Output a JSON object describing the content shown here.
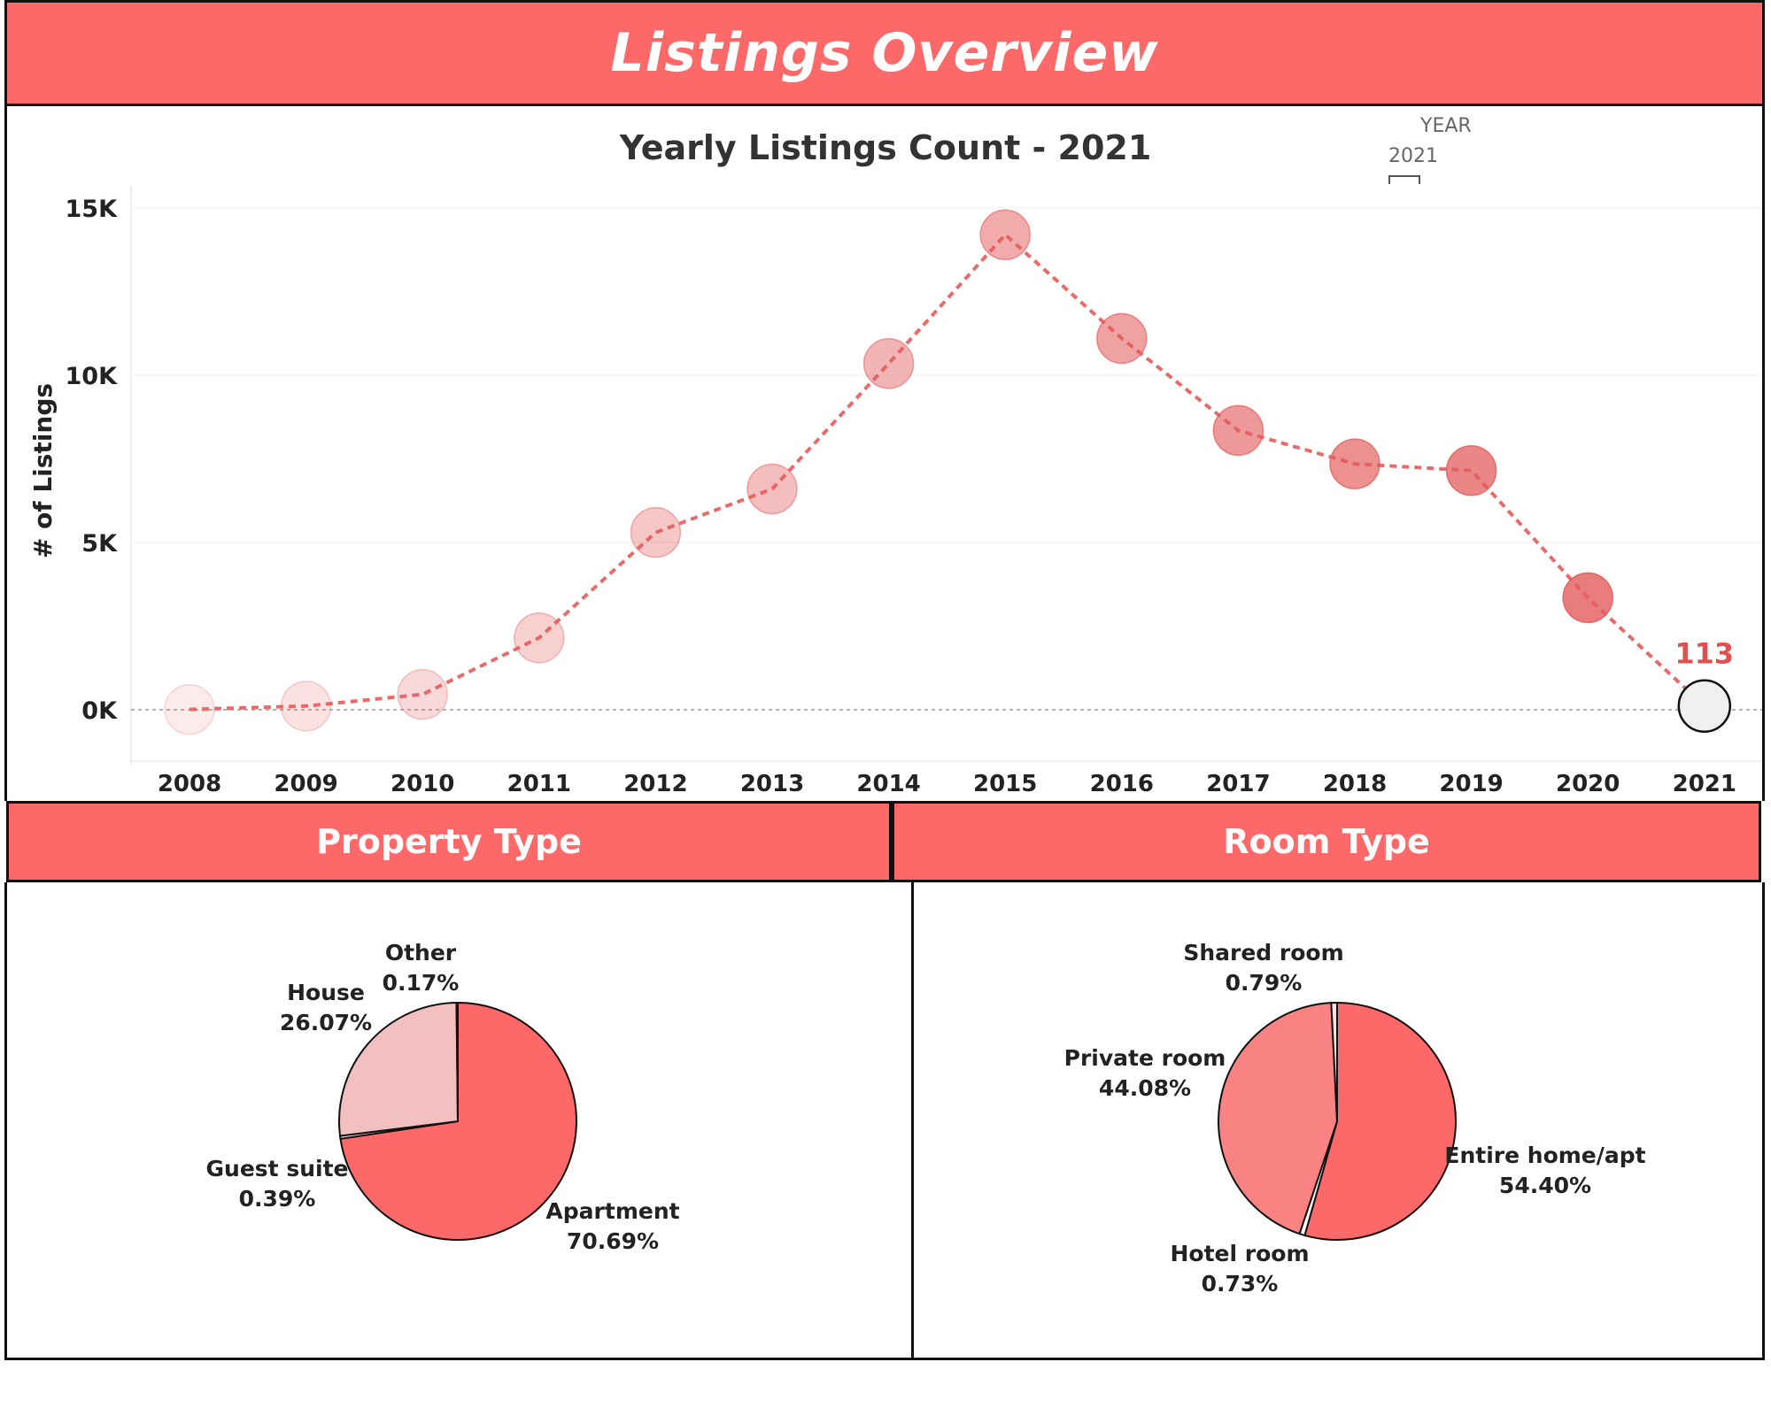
{
  "dashboard": {
    "title": "Listings Overview",
    "filter": {
      "label": "YEAR",
      "value": "2021"
    },
    "colors": {
      "accent": "#fd6868",
      "border": "#111111",
      "label_red": "#e0504f"
    }
  },
  "chart_data": [
    {
      "type": "line",
      "title": "Yearly Listings Count - 2021",
      "xlabel": "",
      "ylabel": "# of Listings",
      "ylim": [
        -1500,
        15000
      ],
      "yticks": [
        0,
        5000,
        10000,
        15000
      ],
      "ytick_labels": [
        "0K",
        "5K",
        "10K",
        "15K"
      ],
      "categories": [
        "2008",
        "2009",
        "2010",
        "2011",
        "2012",
        "2013",
        "2014",
        "2015",
        "2016",
        "2017",
        "2018",
        "2019",
        "2020",
        "2021"
      ],
      "values": [
        10,
        110,
        460,
        2150,
        5300,
        6600,
        10350,
        14200,
        11100,
        8350,
        7350,
        7150,
        3350,
        113
      ],
      "highlight": {
        "category": "2021",
        "label": "113"
      }
    },
    {
      "type": "pie",
      "title": "Property Type",
      "labels": [
        "Apartment",
        "Guest suite",
        "House",
        "Other"
      ],
      "values": [
        70.69,
        0.39,
        26.07,
        0.17
      ],
      "value_labels": [
        "70.69%",
        "0.39%",
        "26.07%",
        "0.17%"
      ]
    },
    {
      "type": "pie",
      "title": "Room Type",
      "labels": [
        "Entire home/apt",
        "Hotel room",
        "Private room",
        "Shared room"
      ],
      "values": [
        54.4,
        0.73,
        44.08,
        0.79
      ],
      "value_labels": [
        "54.40%",
        "0.73%",
        "44.08%",
        "0.79%"
      ]
    }
  ]
}
